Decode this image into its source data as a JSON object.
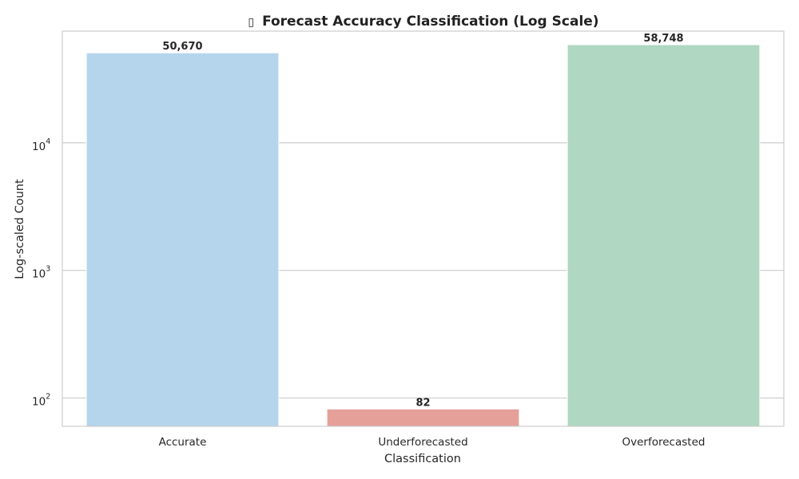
{
  "chart_data": {
    "type": "bar",
    "title": "Forecast Accuracy Classification (Log Scale)",
    "title_icon": "bar-chart-emoji-icon",
    "xlabel": "Classification",
    "ylabel": "Log-scaled Count",
    "y_scale": "log",
    "ylim": [
      60,
      75000
    ],
    "y_ticks": [
      {
        "value": 100,
        "base": "10",
        "exp": "2"
      },
      {
        "value": 1000,
        "base": "10",
        "exp": "3"
      },
      {
        "value": 10000,
        "base": "10",
        "exp": "4"
      }
    ],
    "categories": [
      "Accurate",
      "Underforecasted",
      "Overforecasted"
    ],
    "values": [
      50670,
      82,
      58748
    ],
    "value_labels": [
      "50,670",
      "82",
      "58,748"
    ],
    "colors": [
      "#b4d5ec",
      "#e5a09a",
      "#afd7c2"
    ],
    "grid": "y-major",
    "grid_color": "#cccccc",
    "frame_color": "#cccccc",
    "legend": "none"
  }
}
